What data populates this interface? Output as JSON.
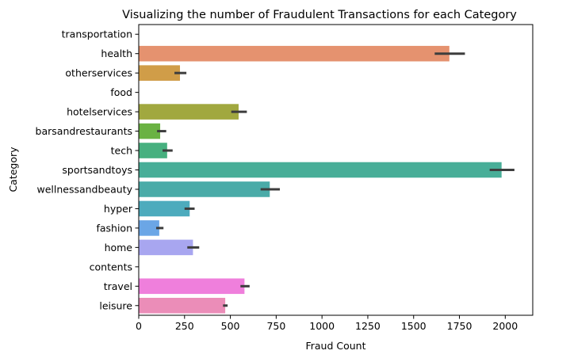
{
  "chart_data": {
    "type": "bar",
    "orientation": "horizontal",
    "title": "Visualizing the number of Fraudulent Transactions for each Category",
    "xlabel": "Fraud Count",
    "ylabel": "Category",
    "xlim": [
      0,
      2150
    ],
    "xticks": [
      0,
      250,
      500,
      750,
      1000,
      1250,
      1500,
      1750,
      2000
    ],
    "xtick_labels": [
      "0",
      "250",
      "500",
      "750",
      "1000",
      "1250",
      "1500",
      "1750",
      "2000"
    ],
    "grid": false,
    "categories": [
      "transportation",
      "health",
      "otherservices",
      "food",
      "hotelservices",
      "barsandrestaurants",
      "tech",
      "sportsandtoys",
      "wellnessandbeauty",
      "hyper",
      "fashion",
      "home",
      "contents",
      "travel",
      "leisure"
    ],
    "values": [
      0,
      1695,
      225,
      0,
      545,
      117,
      155,
      1980,
      715,
      278,
      112,
      296,
      0,
      577,
      472
    ],
    "error_low": [
      0,
      1615,
      195,
      0,
      505,
      100,
      130,
      1915,
      665,
      250,
      95,
      265,
      0,
      555,
      460
    ],
    "error_high": [
      0,
      1780,
      260,
      0,
      590,
      150,
      185,
      2050,
      770,
      305,
      135,
      330,
      0,
      605,
      485
    ],
    "colors": [
      "#ea96a3",
      "#e5926f",
      "#d09d48",
      "#b9a241",
      "#a1a83f",
      "#6ab243",
      "#47b07f",
      "#48ae98",
      "#4aaba8",
      "#4dabbd",
      "#6ba6e6",
      "#a8a6f0",
      "#d096eb",
      "#ef7fdc",
      "#eb8db8"
    ]
  }
}
